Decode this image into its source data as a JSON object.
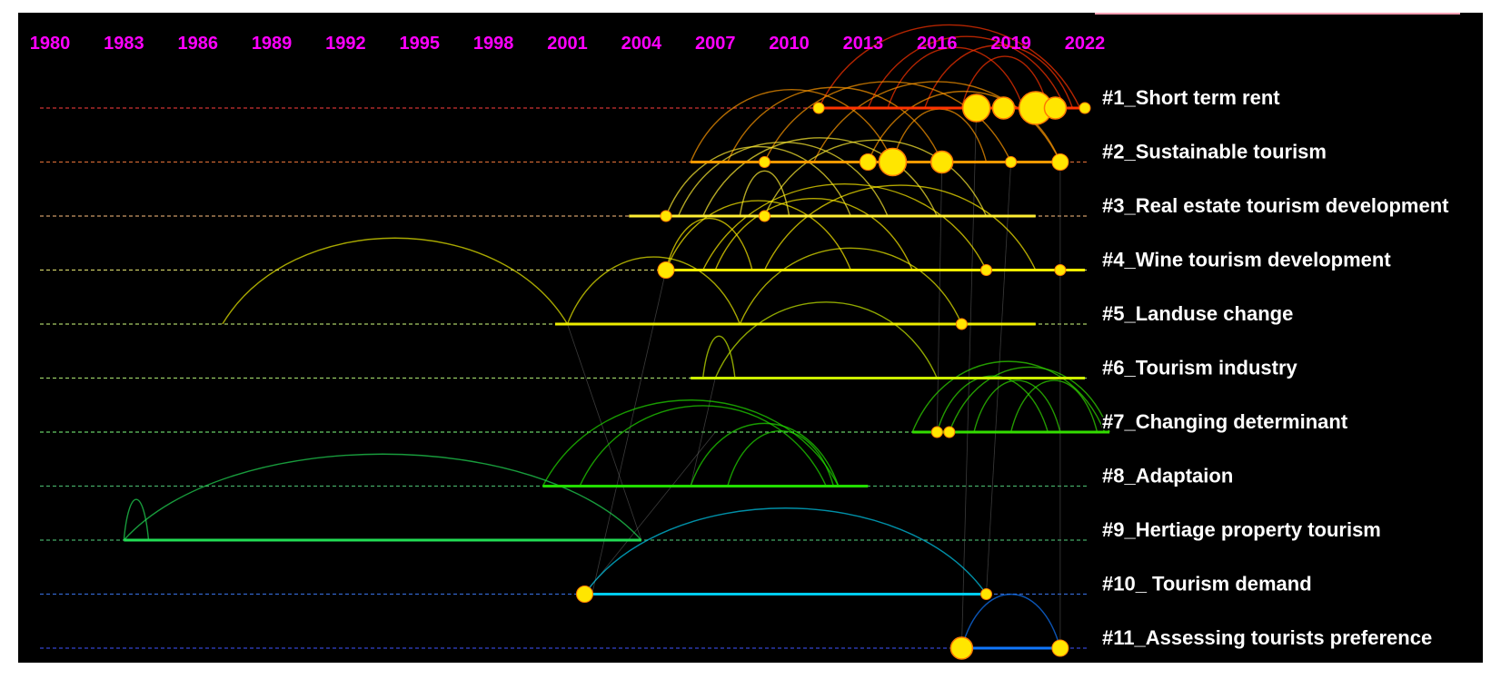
{
  "chart_data": {
    "type": "timeline",
    "axis": {
      "x_min": 1980,
      "x_max": 2022,
      "ticks": [
        1980,
        1983,
        1986,
        1989,
        1992,
        1995,
        1998,
        2001,
        2004,
        2007,
        2010,
        2013,
        2016,
        2019,
        2022
      ],
      "tick_labels": [
        "1980",
        "1983",
        "1986",
        "1989",
        "1992",
        "1995",
        "1998",
        "2001",
        "2004",
        "2007",
        "2010",
        "2013",
        "2016",
        "2019",
        "2022"
      ],
      "tick_color": "#ff00ff"
    },
    "background": "#000000",
    "clusters": [
      {
        "label": "#1_Short term rent",
        "color": "#ff3300",
        "dash_color": "#cc3333",
        "start": 2011.2,
        "end": 2022.0,
        "nodes": [
          {
            "year": 2011.2,
            "size": 1
          },
          {
            "year": 2017.6,
            "size": 4
          },
          {
            "year": 2018.7,
            "size": 3
          },
          {
            "year": 2020.0,
            "size": 5
          },
          {
            "year": 2020.8,
            "size": 3
          },
          {
            "year": 2022.0,
            "size": 1
          }
        ],
        "arcs": [
          [
            2011.2,
            2021.8
          ],
          [
            2013.2,
            2021.2
          ],
          [
            2014.0,
            2019.5
          ],
          [
            2015.5,
            2021.5
          ],
          [
            2017.0,
            2020.5
          ]
        ]
      },
      {
        "label": "#2_Sustainable tourism",
        "color": "#ff9900",
        "dash_color": "#cc6633",
        "start": 2006.0,
        "end": 2021.0,
        "nodes": [
          {
            "year": 2009.0,
            "size": 1
          },
          {
            "year": 2013.2,
            "size": 2
          },
          {
            "year": 2014.2,
            "size": 4
          },
          {
            "year": 2016.2,
            "size": 3
          },
          {
            "year": 2019.0,
            "size": 1
          },
          {
            "year": 2021.0,
            "size": 2
          }
        ],
        "arcs": [
          [
            2006.0,
            2014.2
          ],
          [
            2007.5,
            2016.2
          ],
          [
            2009.0,
            2019.0
          ],
          [
            2011.0,
            2021.0
          ],
          [
            2013.2,
            2021.0
          ],
          [
            2014.2,
            2018.0
          ]
        ]
      },
      {
        "label": "#3_Real estate tourism development",
        "color": "#ffee33",
        "dash_color": "#cc9966",
        "start": 2003.5,
        "end": 2020.0,
        "nodes": [
          {
            "year": 2005.0,
            "size": 1
          },
          {
            "year": 2009.0,
            "size": 1
          }
        ],
        "arcs": [
          [
            2005.0,
            2012.5
          ],
          [
            2005.5,
            2014.0
          ],
          [
            2006.5,
            2016.0
          ],
          [
            2009.0,
            2018.0
          ],
          [
            2008.0,
            2010.0
          ]
        ]
      },
      {
        "label": "#4_Wine tourism development",
        "color": "#ffee00",
        "dash_color": "#cccc66",
        "start": 2005.0,
        "end": 2022.0,
        "nodes": [
          {
            "year": 2005.0,
            "size": 2
          },
          {
            "year": 2018.0,
            "size": 1
          },
          {
            "year": 2021.0,
            "size": 1
          }
        ],
        "arcs": [
          [
            2005.0,
            2008.5
          ],
          [
            2005.0,
            2012.5
          ],
          [
            2006.5,
            2018.0
          ],
          [
            2007.0,
            2015.0
          ],
          [
            2009.0,
            2020.0
          ]
        ]
      },
      {
        "label": "#5_Landuse change",
        "color": "#eeee00",
        "dash_color": "#aacc66",
        "start": 2000.5,
        "end": 2020.0,
        "nodes": [
          {
            "year": 2017.0,
            "size": 1
          }
        ],
        "arcs": [
          [
            2001.0,
            2008.0
          ],
          [
            2008.0,
            2017.0
          ],
          [
            1987.0,
            2001.0
          ]
        ]
      },
      {
        "label": "#6_Tourism industry",
        "color": "#ccee00",
        "dash_color": "#99cc66",
        "start": 2006.0,
        "end": 2022.0,
        "nodes": [],
        "arcs": [
          [
            2006.5,
            2007.8
          ],
          [
            2007.0,
            2016.0
          ]
        ]
      },
      {
        "label": "#7_Changing determinant",
        "color": "#33dd00",
        "dash_color": "#66cc66",
        "start": 2015.0,
        "end": 2023.0,
        "nodes": [
          {
            "year": 2016.0,
            "size": 1
          },
          {
            "year": 2016.5,
            "size": 1
          }
        ],
        "arcs": [
          [
            2015.0,
            2022.8
          ],
          [
            2016.0,
            2020.5
          ],
          [
            2016.5,
            2023.0
          ],
          [
            2017.5,
            2021.0
          ],
          [
            2019.0,
            2022.5
          ]
        ]
      },
      {
        "label": "#8_Adaptaion",
        "color": "#22dd00",
        "dash_color": "#44aa66",
        "start": 2000.0,
        "end": 2013.2,
        "nodes": [],
        "arcs": [
          [
            2000.0,
            2012.0
          ],
          [
            2001.5,
            2011.5
          ],
          [
            2006.0,
            2012.0
          ],
          [
            2007.5,
            2011.8
          ]
        ]
      },
      {
        "label": "#9_Hertiage property tourism",
        "color": "#22dd55",
        "dash_color": "#44aa66",
        "start": 1983.0,
        "end": 2004.0,
        "nodes": [],
        "arcs": [
          [
            1983.0,
            2004.0
          ],
          [
            1983.0,
            1984.0
          ]
        ]
      },
      {
        "label": "#10_ Tourism demand",
        "color": "#00ccee",
        "dash_color": "#3366cc",
        "start": 2001.7,
        "end": 2018.0,
        "nodes": [
          {
            "year": 2001.7,
            "size": 2
          },
          {
            "year": 2018.0,
            "size": 1
          }
        ],
        "arcs": [
          [
            2001.7,
            2018.0
          ]
        ]
      },
      {
        "label": "#11_Assessing tourists preference",
        "color": "#1177ff",
        "dash_color": "#3344cc",
        "start": 2017.0,
        "end": 2021.0,
        "nodes": [
          {
            "year": 2017.0,
            "size": 3
          },
          {
            "year": 2021.0,
            "size": 2
          }
        ],
        "arcs": [
          [
            2017.0,
            2021.0
          ]
        ]
      }
    ]
  }
}
